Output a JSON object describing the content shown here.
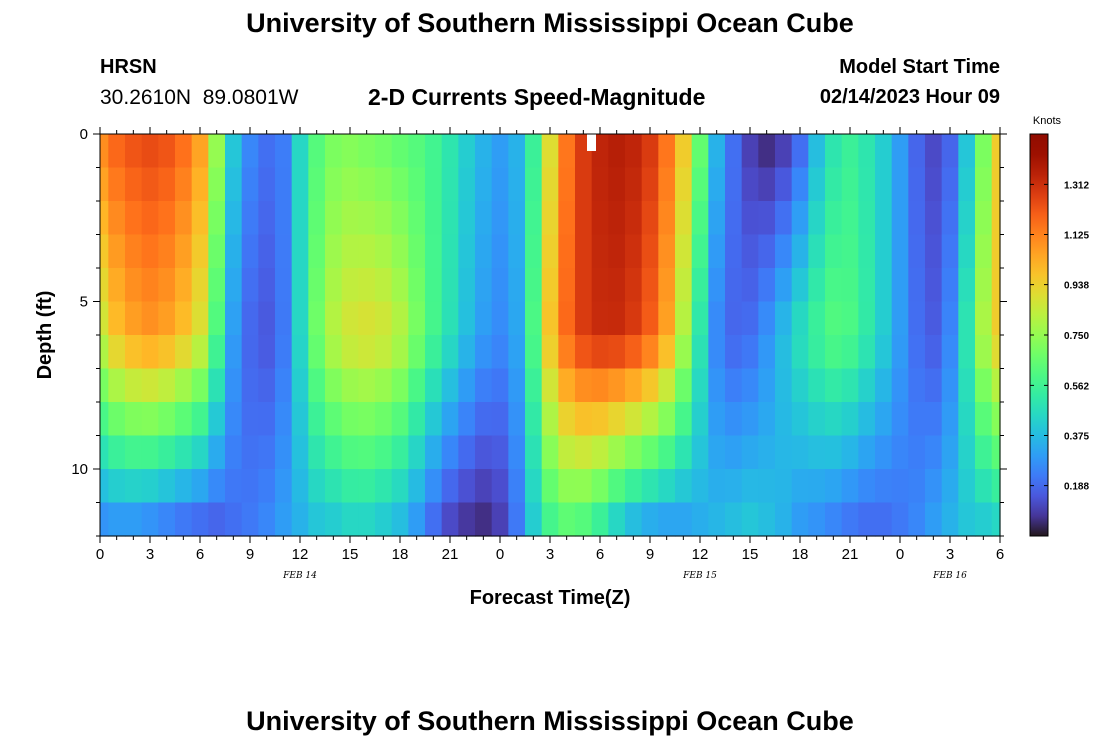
{
  "header": {
    "title": "University of Southern Mississippi Ocean Cube",
    "station": "HRSN",
    "coordinates": "30.2610N  89.0801W",
    "subtitle": "2-D Currents Speed-Magnitude",
    "model_start_label": "Model Start Time",
    "model_start_time": "02/14/2023 Hour 09"
  },
  "footer": {
    "title": "University of Southern Mississippi Ocean Cube"
  },
  "chart_data": {
    "type": "heatmap",
    "title": "2-D Currents Speed-Magnitude",
    "xlabel": "Forecast Time(Z)",
    "ylabel": "Depth (ft)",
    "x_unit": "hours since Feb 14 00Z",
    "xlim": [
      0,
      54
    ],
    "ylim": [
      0,
      12
    ],
    "y_inverted": true,
    "x_tick_values": [
      0,
      3,
      6,
      9,
      12,
      15,
      18,
      21,
      24,
      27,
      30,
      33,
      36,
      39,
      42,
      45,
      48,
      51,
      54
    ],
    "x_tick_labels": [
      "0",
      "3",
      "6",
      "9",
      "12",
      "15",
      "18",
      "21",
      "0",
      "3",
      "6",
      "9",
      "12",
      "15",
      "18",
      "21",
      "0",
      "3",
      "6"
    ],
    "y_tick_values": [
      0,
      5,
      10
    ],
    "y_tick_labels": [
      "0",
      "5",
      "10"
    ],
    "date_labels": [
      {
        "x": 12,
        "label": "FEB 14"
      },
      {
        "x": 36,
        "label": "FEB 15"
      },
      {
        "x": 51,
        "label": "FEB 16"
      }
    ],
    "colorbar": {
      "label": "Knots",
      "min": 0.0,
      "max": 1.5,
      "ticks": [
        0.188,
        0.375,
        0.562,
        0.75,
        0.938,
        1.125,
        1.312
      ],
      "tick_labels": [
        "0.188",
        "0.375",
        "0.562",
        "0.750",
        "0.938",
        "1.125",
        "1.312"
      ],
      "colormap": "turbo"
    },
    "grid": false,
    "time_step_hours": 1,
    "depth_levels_ft": [
      0,
      1,
      2,
      3,
      4,
      5,
      6,
      7,
      8,
      9,
      10,
      11
    ],
    "speed_profile_knots": {
      "0": [
        1.1,
        1.18,
        1.22,
        1.24,
        1.22,
        1.16,
        1.05,
        0.75,
        0.4,
        0.25,
        0.2,
        0.23,
        0.45,
        0.62,
        0.7,
        0.72,
        0.7,
        0.68,
        0.65,
        0.62,
        0.57,
        0.5,
        0.42,
        0.35,
        0.3,
        0.35,
        0.55,
        0.9,
        1.15,
        1.28,
        1.34,
        1.36,
        1.34,
        1.28,
        1.15,
        0.95,
        0.65,
        0.35,
        0.2,
        0.1,
        0.06,
        0.1,
        0.2,
        0.38,
        0.5,
        0.55,
        0.5,
        0.42,
        0.3,
        0.18,
        0.12,
        0.18,
        0.4,
        0.7,
        0.95
      ],
      "mid": [
        0.85,
        0.98,
        1.05,
        1.08,
        1.05,
        0.98,
        0.88,
        0.6,
        0.3,
        0.18,
        0.15,
        0.22,
        0.45,
        0.68,
        0.82,
        0.88,
        0.9,
        0.88,
        0.82,
        0.7,
        0.58,
        0.48,
        0.38,
        0.3,
        0.26,
        0.32,
        0.6,
        0.98,
        1.18,
        1.28,
        1.32,
        1.32,
        1.28,
        1.2,
        1.05,
        0.8,
        0.5,
        0.25,
        0.18,
        0.2,
        0.28,
        0.38,
        0.48,
        0.56,
        0.62,
        0.6,
        0.52,
        0.42,
        0.3,
        0.2,
        0.16,
        0.25,
        0.5,
        0.8,
        0.95
      ],
      "11": [
        0.28,
        0.3,
        0.3,
        0.28,
        0.25,
        0.22,
        0.2,
        0.18,
        0.2,
        0.22,
        0.25,
        0.3,
        0.35,
        0.4,
        0.42,
        0.45,
        0.45,
        0.42,
        0.38,
        0.3,
        0.2,
        0.12,
        0.08,
        0.06,
        0.1,
        0.22,
        0.42,
        0.58,
        0.64,
        0.62,
        0.55,
        0.45,
        0.38,
        0.34,
        0.32,
        0.32,
        0.34,
        0.36,
        0.38,
        0.4,
        0.38,
        0.35,
        0.3,
        0.28,
        0.25,
        0.22,
        0.2,
        0.2,
        0.22,
        0.25,
        0.3,
        0.35,
        0.4,
        0.42,
        0.45
      ]
    }
  }
}
